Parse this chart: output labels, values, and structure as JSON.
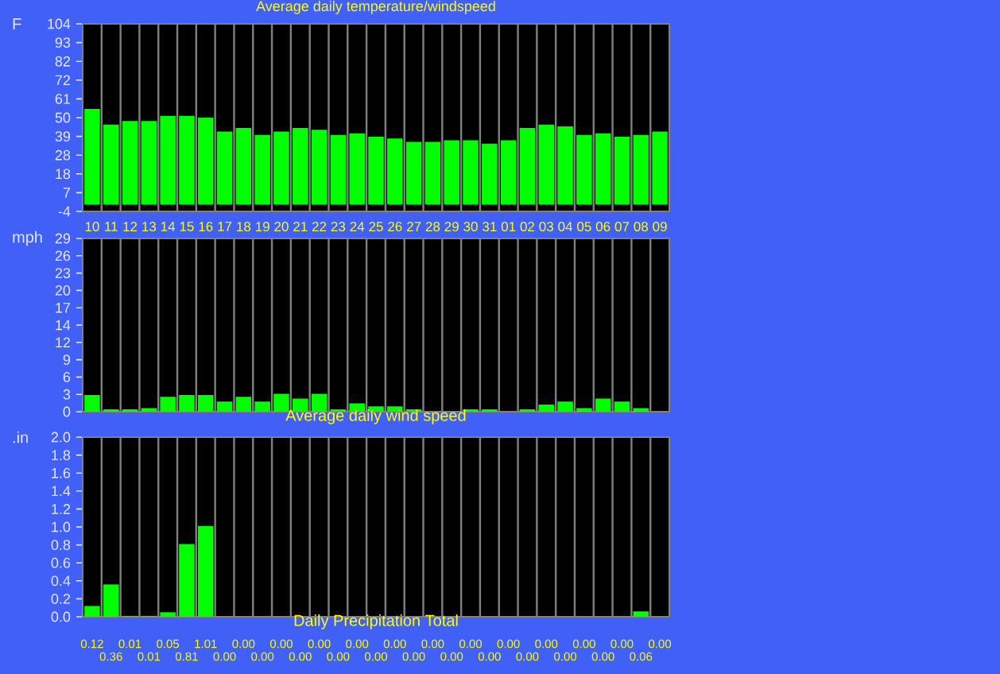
{
  "chart_data": [
    {
      "type": "bar",
      "title": "Average daily temperature/windspeed",
      "ylabel": "F",
      "categories": [
        "10",
        "11",
        "12",
        "13",
        "14",
        "15",
        "16",
        "17",
        "18",
        "19",
        "20",
        "21",
        "22",
        "23",
        "24",
        "25",
        "26",
        "27",
        "28",
        "29",
        "30",
        "31",
        "01",
        "02",
        "03",
        "04",
        "05",
        "06",
        "07",
        "08",
        "09"
      ],
      "values": [
        55,
        46,
        48,
        48,
        51,
        51,
        50,
        42,
        44,
        40,
        42,
        44,
        43,
        40,
        41,
        39,
        38,
        36,
        36,
        37,
        37,
        35,
        37,
        44,
        46,
        45,
        40,
        41,
        39,
        40,
        42
      ],
      "color": "#00ff00",
      "ylim": [
        -4,
        104
      ],
      "yticks": [
        -4,
        {
          "value": 6.8,
          "label": "7"
        },
        {
          "value": 17.6,
          "label": "18"
        },
        {
          "value": 28.4,
          "label": "28"
        },
        {
          "value": 39.2,
          "label": "39"
        },
        50,
        {
          "value": 60.8,
          "label": "61"
        },
        {
          "value": 71.6,
          "label": "72"
        },
        {
          "value": 82.4,
          "label": "82"
        },
        {
          "value": 93.2,
          "label": "93"
        },
        104
      ],
      "grid": "x"
    },
    {
      "type": "bar",
      "title": "Average daily wind speed",
      "ylabel": "mph",
      "categories": [
        "10",
        "11",
        "12",
        "13",
        "14",
        "15",
        "16",
        "17",
        "18",
        "19",
        "20",
        "21",
        "22",
        "23",
        "24",
        "25",
        "26",
        "27",
        "28",
        "29",
        "30",
        "31",
        "01",
        "02",
        "03",
        "04",
        "05",
        "06",
        "07",
        "08",
        "09"
      ],
      "values": [
        2.8,
        0.4,
        0.4,
        0.6,
        2.5,
        2.8,
        2.8,
        1.7,
        2.5,
        1.7,
        3.0,
        2.2,
        3.0,
        0.4,
        1.4,
        0.9,
        0.9,
        0.4,
        0,
        0,
        0.4,
        0.4,
        0,
        0.4,
        1.2,
        1.7,
        0.6,
        2.2,
        1.7,
        0.6,
        0
      ],
      "color": "#00ff00",
      "ylim": [
        0,
        29
      ],
      "yticks": [
        0,
        {
          "value": 2.9,
          "label": "3"
        },
        {
          "value": 5.8,
          "label": "6"
        },
        {
          "value": 8.7,
          "label": "9"
        },
        {
          "value": 11.6,
          "label": "12"
        },
        {
          "value": 14.5,
          "label": "14"
        },
        {
          "value": 17.4,
          "label": "17"
        },
        {
          "value": 20.3,
          "label": "20"
        },
        {
          "value": 23.2,
          "label": "23"
        },
        {
          "value": 26.1,
          "label": "26"
        },
        29
      ],
      "grid": "x",
      "tick_labels": "y"
    },
    {
      "type": "bar",
      "title": "Daily Precipitation Total",
      "ylabel": ".in",
      "categories": [
        "10",
        "11",
        "12",
        "13",
        "14",
        "15",
        "16",
        "17",
        "18",
        "19",
        "20",
        "21",
        "22",
        "23",
        "24",
        "25",
        "26",
        "27",
        "28",
        "29",
        "30",
        "31",
        "01",
        "02",
        "03",
        "04",
        "05",
        "06",
        "07",
        "08",
        "09"
      ],
      "values": [
        0.12,
        0.36,
        0.01,
        0.01,
        0.05,
        0.81,
        1.01,
        0,
        0,
        0,
        0,
        0,
        0,
        0,
        0,
        0,
        0,
        0,
        0,
        0,
        0,
        0,
        0,
        0,
        0,
        0,
        0,
        0,
        0,
        0.06,
        0
      ],
      "value_labels": [
        "0.12",
        "0.36",
        "0.01",
        "0.01",
        "0.05",
        "0.81",
        "1.01",
        "0.00",
        "0.00",
        "0.00",
        "0.00",
        "0.00",
        "0.00",
        "0.00",
        "0.00",
        "0.00",
        "0.00",
        "0.00",
        "0.00",
        "0.00",
        "0.00",
        "0.00",
        "0.00",
        "0.00",
        "0.00",
        "0.00",
        "0.00",
        "0.00",
        "0.00",
        "0.06",
        "0.00"
      ],
      "color": "#00ff00",
      "ylim": [
        0,
        2.0
      ],
      "yticks": [
        {
          "value": 0,
          "label": "0.0"
        },
        {
          "value": 0.2,
          "label": "0.2"
        },
        {
          "value": 0.4,
          "label": "0.4"
        },
        {
          "value": 0.6,
          "label": "0.6"
        },
        {
          "value": 0.8,
          "label": "0.8"
        },
        {
          "value": 1.0,
          "label": "1.0"
        },
        {
          "value": 1.2,
          "label": "1.2"
        },
        {
          "value": 1.4,
          "label": "1.4"
        },
        {
          "value": 1.6,
          "label": "1.6"
        },
        {
          "value": 1.8,
          "label": "1.8"
        },
        {
          "value": 2.0,
          "label": "2.0"
        }
      ],
      "grid": "x",
      "tick_labels": "y"
    }
  ]
}
